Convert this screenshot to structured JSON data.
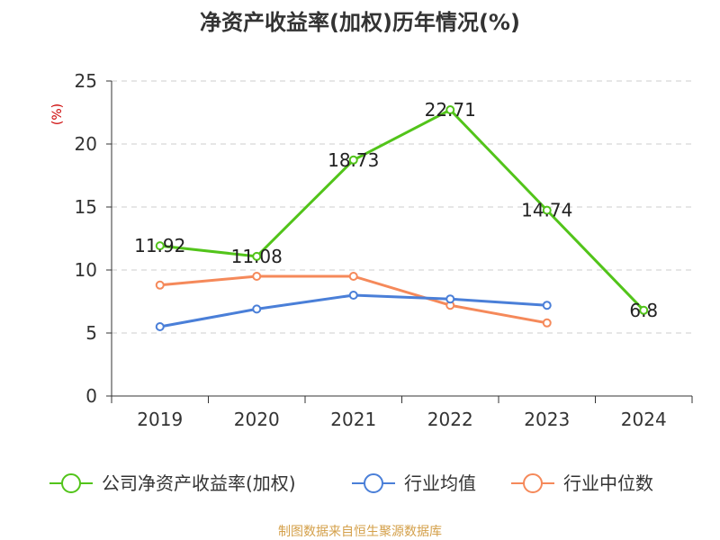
{
  "chart_data": {
    "type": "line",
    "title": "净资产收益率(加权)历年情况(%)",
    "ylabel": "(%)",
    "xlabel": "",
    "categories": [
      "2019",
      "2020",
      "2021",
      "2022",
      "2023",
      "2024"
    ],
    "ylim": [
      0,
      25
    ],
    "yticks": [
      0,
      5,
      10,
      15,
      20,
      25
    ],
    "grid": true,
    "legend_position": "bottom",
    "series": [
      {
        "name": "公司净资产收益率(加权)",
        "color": "#52c41a",
        "values": [
          11.92,
          11.08,
          18.73,
          22.71,
          14.74,
          6.8
        ],
        "labels": [
          "11.92",
          "11.08",
          "18.73",
          "22.71",
          "14.74",
          "6.8"
        ]
      },
      {
        "name": "行业均值",
        "color": "#4a7fd8",
        "values": [
          5.5,
          6.9,
          8.0,
          7.7,
          7.2,
          null
        ]
      },
      {
        "name": "行业中位数",
        "color": "#f5895a",
        "values": [
          8.8,
          9.5,
          9.5,
          7.2,
          5.8,
          null
        ]
      }
    ]
  },
  "source": "制图数据来自恒生聚源数据库",
  "colors": {
    "ylabel": "#cc0000",
    "source": "#d4a04a",
    "grid": "#cccccc",
    "axis": "#333333"
  }
}
